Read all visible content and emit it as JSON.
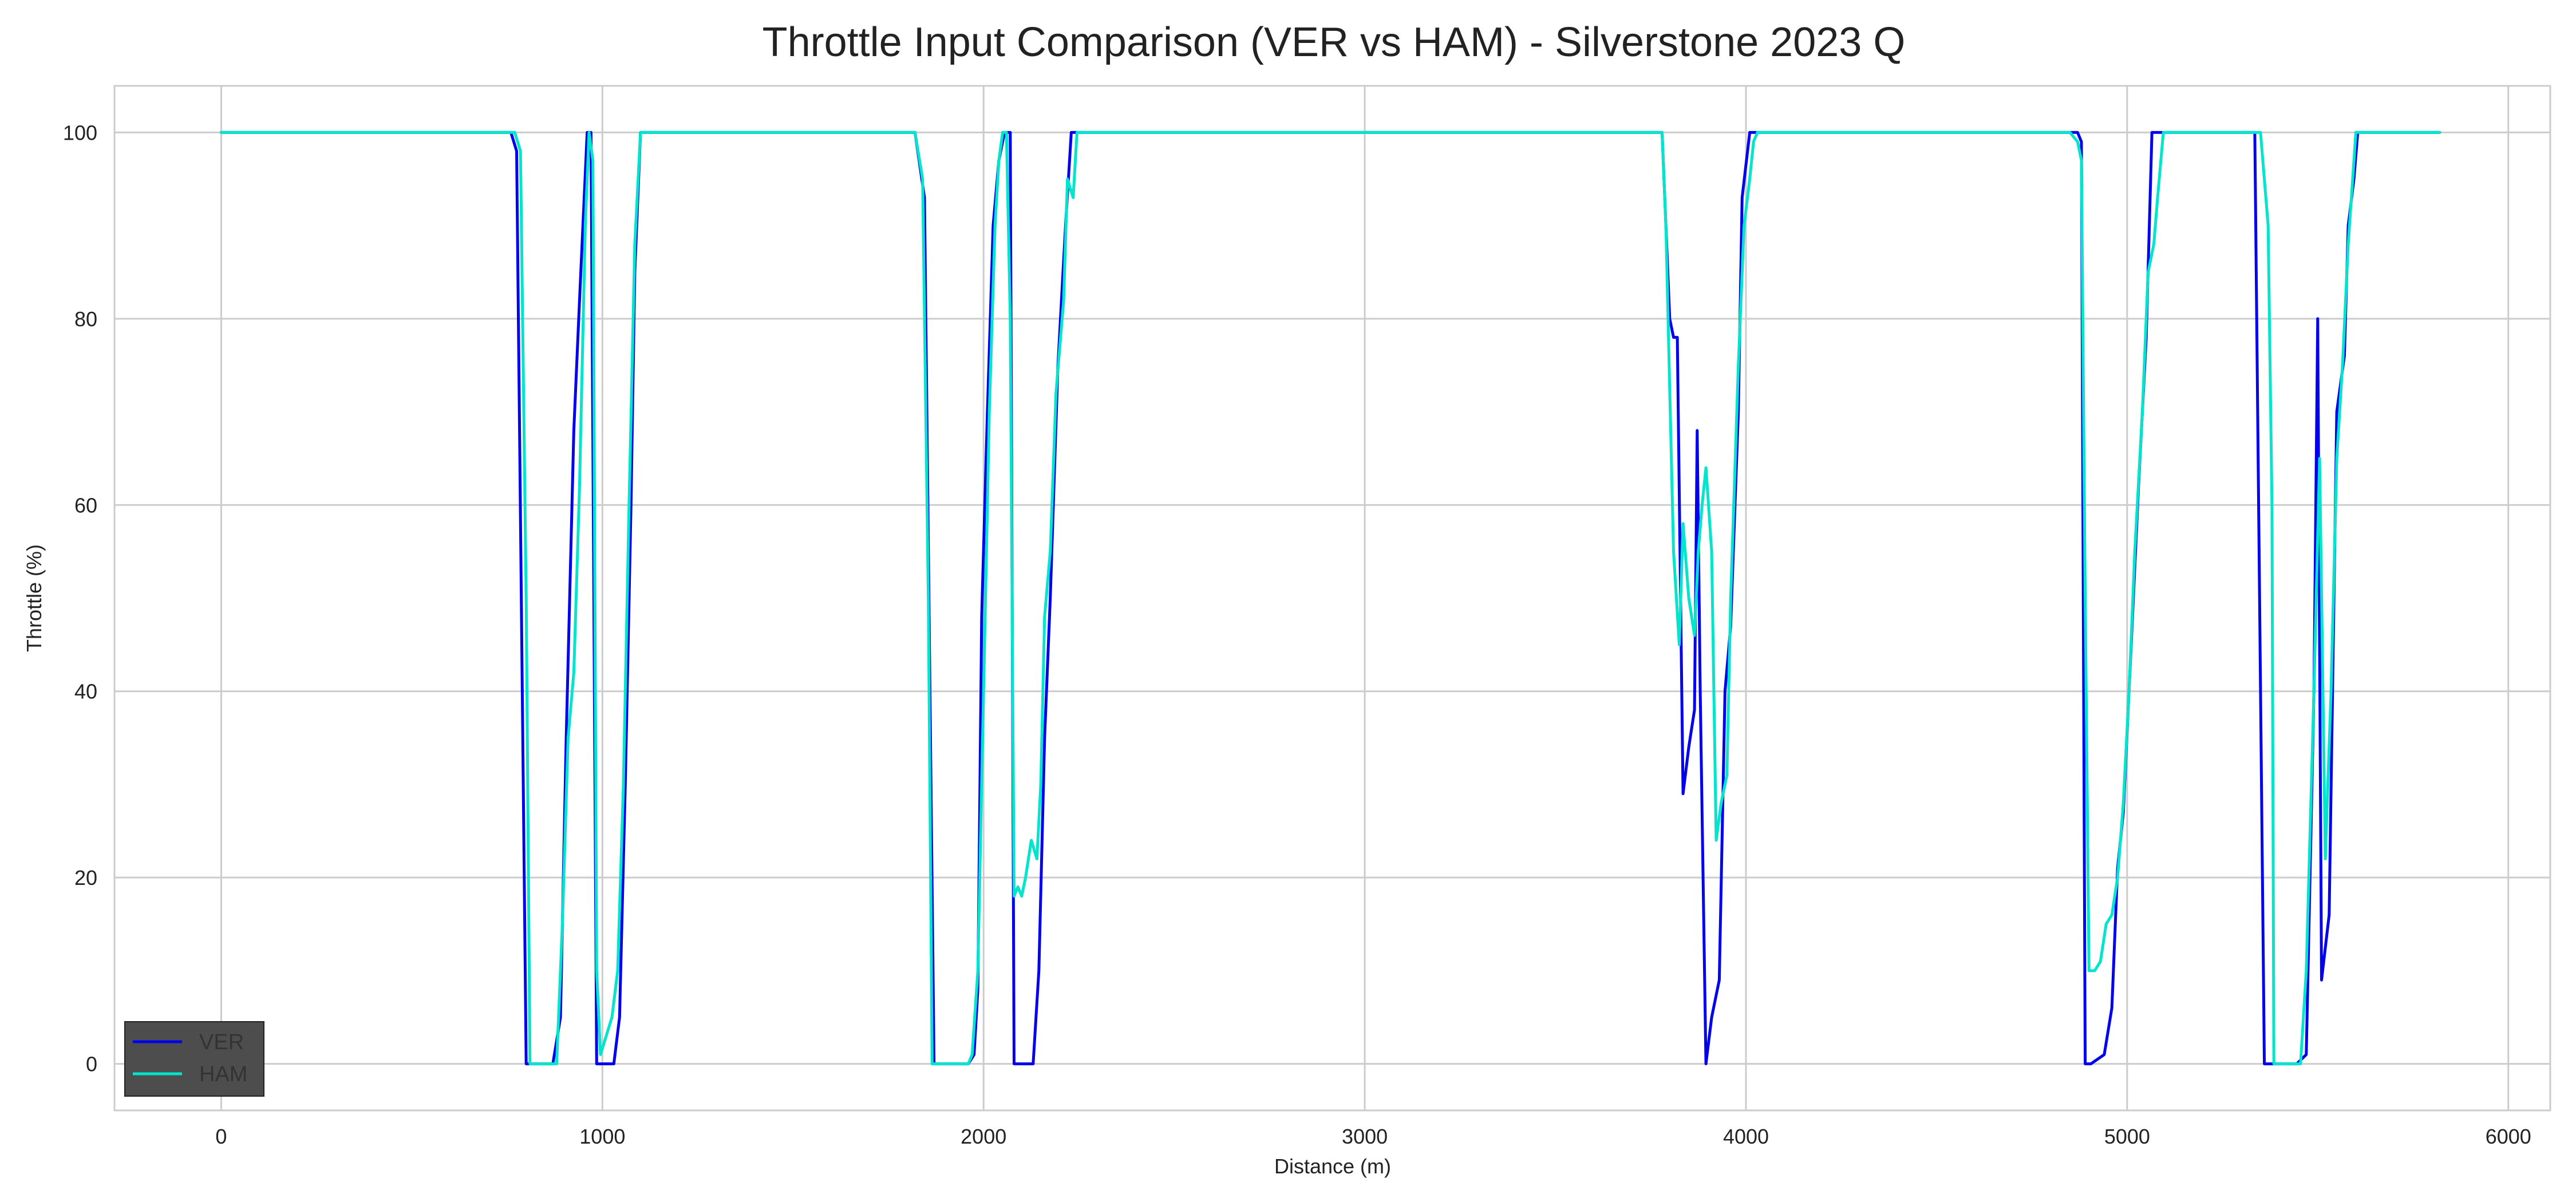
{
  "chart_data": {
    "type": "line",
    "title": "Throttle Input Comparison (VER vs HAM) - Silverstone 2023 Q",
    "xlabel": "Distance (m)",
    "ylabel": "Throttle (%)",
    "xlim": [
      -280,
      6110
    ],
    "ylim": [
      -5,
      105
    ],
    "xticks": [
      0,
      1000,
      2000,
      3000,
      4000,
      5000,
      6000
    ],
    "yticks": [
      0,
      20,
      40,
      60,
      80,
      100
    ],
    "grid": true,
    "legend_position": "bottom-left",
    "series": [
      {
        "name": "VER",
        "color": "#0000ee",
        "points": [
          [
            0,
            100
          ],
          [
            760,
            100
          ],
          [
            775,
            98
          ],
          [
            800,
            0
          ],
          [
            870,
            0
          ],
          [
            890,
            5
          ],
          [
            905,
            35
          ],
          [
            925,
            68
          ],
          [
            940,
            82
          ],
          [
            960,
            100
          ],
          [
            970,
            100
          ],
          [
            985,
            0
          ],
          [
            1030,
            0
          ],
          [
            1045,
            5
          ],
          [
            1060,
            30
          ],
          [
            1075,
            60
          ],
          [
            1085,
            85
          ],
          [
            1100,
            100
          ],
          [
            1820,
            100
          ],
          [
            1845,
            93
          ],
          [
            1870,
            0
          ],
          [
            1960,
            0
          ],
          [
            1975,
            1
          ],
          [
            1985,
            8
          ],
          [
            1995,
            48
          ],
          [
            2010,
            70
          ],
          [
            2025,
            90
          ],
          [
            2040,
            97
          ],
          [
            2055,
            100
          ],
          [
            2070,
            100
          ],
          [
            2080,
            0
          ],
          [
            2130,
            0
          ],
          [
            2145,
            10
          ],
          [
            2160,
            35
          ],
          [
            2175,
            50
          ],
          [
            2195,
            75
          ],
          [
            2215,
            90
          ],
          [
            2230,
            100
          ],
          [
            3780,
            100
          ],
          [
            3800,
            80
          ],
          [
            3810,
            78
          ],
          [
            3820,
            78
          ],
          [
            3835,
            29
          ],
          [
            3850,
            34
          ],
          [
            3865,
            38
          ],
          [
            3872,
            68
          ],
          [
            3880,
            40
          ],
          [
            3895,
            0
          ],
          [
            3910,
            5
          ],
          [
            3930,
            9
          ],
          [
            3945,
            40
          ],
          [
            3960,
            47
          ],
          [
            3980,
            70
          ],
          [
            3990,
            93
          ],
          [
            4010,
            100
          ],
          [
            4870,
            100
          ],
          [
            4880,
            99
          ],
          [
            4890,
            0
          ],
          [
            4905,
            0
          ],
          [
            4940,
            1
          ],
          [
            4960,
            6
          ],
          [
            4975,
            21
          ],
          [
            4990,
            27
          ],
          [
            5005,
            40
          ],
          [
            5030,
            62
          ],
          [
            5050,
            78
          ],
          [
            5065,
            100
          ],
          [
            5120,
            100
          ],
          [
            5335,
            100
          ],
          [
            5360,
            0
          ],
          [
            5445,
            0
          ],
          [
            5470,
            1
          ],
          [
            5490,
            40
          ],
          [
            5500,
            80
          ],
          [
            5510,
            9
          ],
          [
            5530,
            16
          ],
          [
            5550,
            70
          ],
          [
            5570,
            76
          ],
          [
            5580,
            90
          ],
          [
            5595,
            95
          ],
          [
            5605,
            100
          ],
          [
            5820,
            100
          ]
        ]
      },
      {
        "name": "HAM",
        "color": "#00e5cc",
        "points": [
          [
            0,
            100
          ],
          [
            770,
            100
          ],
          [
            785,
            98
          ],
          [
            800,
            50
          ],
          [
            810,
            0
          ],
          [
            880,
            0
          ],
          [
            895,
            15
          ],
          [
            910,
            35
          ],
          [
            925,
            42
          ],
          [
            940,
            62
          ],
          [
            955,
            90
          ],
          [
            965,
            100
          ],
          [
            975,
            97
          ],
          [
            985,
            10
          ],
          [
            995,
            1
          ],
          [
            1010,
            3
          ],
          [
            1025,
            5
          ],
          [
            1040,
            10
          ],
          [
            1055,
            30
          ],
          [
            1070,
            60
          ],
          [
            1085,
            88
          ],
          [
            1100,
            100
          ],
          [
            1820,
            100
          ],
          [
            1840,
            95
          ],
          [
            1855,
            50
          ],
          [
            1865,
            0
          ],
          [
            1950,
            0
          ],
          [
            1960,
            0
          ],
          [
            1970,
            1
          ],
          [
            1985,
            10
          ],
          [
            2000,
            40
          ],
          [
            2015,
            70
          ],
          [
            2030,
            90
          ],
          [
            2040,
            97
          ],
          [
            2050,
            100
          ],
          [
            2060,
            100
          ],
          [
            2070,
            80
          ],
          [
            2080,
            18
          ],
          [
            2090,
            19
          ],
          [
            2100,
            18
          ],
          [
            2110,
            20
          ],
          [
            2125,
            24
          ],
          [
            2140,
            22
          ],
          [
            2150,
            30
          ],
          [
            2160,
            48
          ],
          [
            2175,
            55
          ],
          [
            2190,
            72
          ],
          [
            2210,
            82
          ],
          [
            2220,
            95
          ],
          [
            2235,
            93
          ],
          [
            2245,
            100
          ],
          [
            3780,
            100
          ],
          [
            3790,
            90
          ],
          [
            3810,
            55
          ],
          [
            3825,
            45
          ],
          [
            3835,
            58
          ],
          [
            3850,
            50
          ],
          [
            3865,
            46
          ],
          [
            3875,
            55
          ],
          [
            3885,
            60
          ],
          [
            3895,
            64
          ],
          [
            3910,
            55
          ],
          [
            3922,
            24
          ],
          [
            3935,
            28
          ],
          [
            3950,
            31
          ],
          [
            3960,
            50
          ],
          [
            3980,
            75
          ],
          [
            3995,
            90
          ],
          [
            4010,
            95
          ],
          [
            4020,
            99
          ],
          [
            4030,
            100
          ],
          [
            4850,
            100
          ],
          [
            4870,
            99
          ],
          [
            4880,
            97
          ],
          [
            4890,
            50
          ],
          [
            4900,
            10
          ],
          [
            4915,
            10
          ],
          [
            4930,
            11
          ],
          [
            4945,
            15
          ],
          [
            4960,
            16
          ],
          [
            4975,
            20
          ],
          [
            4990,
            28
          ],
          [
            5005,
            40
          ],
          [
            5020,
            55
          ],
          [
            5040,
            70
          ],
          [
            5055,
            85
          ],
          [
            5070,
            88
          ],
          [
            5080,
            93
          ],
          [
            5095,
            100
          ],
          [
            5350,
            100
          ],
          [
            5370,
            90
          ],
          [
            5380,
            60
          ],
          [
            5385,
            0
          ],
          [
            5455,
            0
          ],
          [
            5470,
            10
          ],
          [
            5490,
            40
          ],
          [
            5505,
            65
          ],
          [
            5520,
            22
          ],
          [
            5535,
            40
          ],
          [
            5550,
            65
          ],
          [
            5565,
            75
          ],
          [
            5580,
            88
          ],
          [
            5600,
            100
          ],
          [
            5820,
            100
          ]
        ]
      }
    ]
  }
}
